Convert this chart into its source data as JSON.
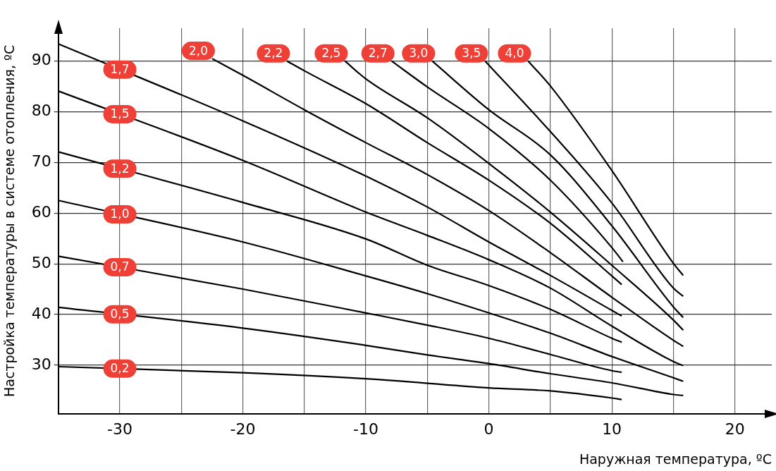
{
  "chart_data": {
    "type": "line",
    "xlabel": "Наружная температура, ºC",
    "ylabel": "Настройка температуры в системе отопления, ºC",
    "xlim": [
      -35,
      23
    ],
    "xticks": [
      -30,
      {
        "value": -25,
        "label": null
      },
      -20,
      {
        "value": -15,
        "label": null
      },
      -10,
      {
        "value": -5,
        "label": null
      },
      0,
      {
        "value": 5,
        "label": null
      },
      10,
      {
        "value": 15,
        "label": null
      },
      20
    ],
    "ylim": [
      20.4,
      96.5
    ],
    "yticks": [
      30,
      40,
      50,
      60,
      70,
      80,
      90
    ],
    "grid": true,
    "legend": false,
    "marker": "none",
    "line_style": "solid",
    "series": [
      {
        "name": "0,2",
        "color": "#000000",
        "x": [
          -35,
          -30,
          -20,
          -10,
          0,
          5,
          10,
          10.8
        ],
        "values": [
          29.7,
          null,
          28.5,
          27.3,
          25.5,
          24.9,
          23.5,
          23.2
        ]
      },
      {
        "name": "0,5",
        "color": "#000000",
        "x": [
          -35,
          -30,
          -20,
          -10,
          -5,
          0,
          5,
          10,
          15,
          15.8
        ],
        "values": [
          41.4,
          null,
          37.3,
          33.9,
          32.0,
          30.3,
          28.3,
          26.5,
          24.2,
          24.0
        ]
      },
      {
        "name": "0,7",
        "color": "#000000",
        "x": [
          -35,
          -30,
          -20,
          -10,
          -5,
          0,
          5,
          10,
          10.8
        ],
        "values": [
          51.5,
          null,
          45.0,
          40.3,
          37.9,
          35.3,
          32.1,
          28.9,
          28.6
        ]
      },
      {
        "name": "1,0",
        "color": "#000000",
        "x": [
          -35,
          -30,
          -20,
          -10,
          -5,
          0,
          5,
          10,
          15,
          15.8
        ],
        "values": [
          62.5,
          null,
          54.3,
          47.6,
          44.1,
          40.3,
          36.3,
          31.7,
          27.5,
          26.8
        ]
      },
      {
        "name": "1,2",
        "color": "#000000",
        "x": [
          -35,
          -30,
          -20,
          -10,
          -5,
          0,
          5,
          10,
          10.8
        ],
        "values": [
          72.1,
          null,
          62.1,
          54.9,
          49.7,
          45.7,
          41.0,
          35.3,
          34.5
        ]
      },
      {
        "name": "1,5",
        "color": "#000000",
        "x": [
          -35,
          -30,
          -20,
          -10,
          -5,
          0,
          5,
          10,
          15,
          15.8
        ],
        "values": [
          84.1,
          null,
          70.4,
          60.2,
          55.6,
          50.8,
          45.2,
          37.7,
          30.7,
          29.9
        ]
      },
      {
        "name": "1,7",
        "color": "#000000",
        "x": [
          -35,
          -30,
          -20,
          -10,
          -5,
          0,
          5,
          10,
          10.8
        ],
        "values": [
          93.4,
          null,
          78.2,
          67.3,
          61.2,
          54.3,
          47.7,
          40.8,
          39.7
        ]
      },
      {
        "name": "2,0",
        "color": "#000000",
        "x": [
          -22.5,
          -20,
          -15,
          -10,
          -5,
          0,
          5,
          10,
          15,
          15.8
        ],
        "values": [
          90.5,
          87.2,
          80.4,
          73.9,
          67.6,
          60.5,
          52.2,
          43.4,
          34.9,
          33.7
        ]
      },
      {
        "name": "2,2",
        "color": "#000000",
        "x": [
          -16.4,
          -15,
          -10,
          -5,
          0,
          5,
          10,
          10.8
        ],
        "values": [
          90,
          88.1,
          81.6,
          73.9,
          66.5,
          58.0,
          47.6,
          45.9
        ]
      },
      {
        "name": "2,5",
        "color": "#000000",
        "x": [
          -11.7,
          -10,
          -5,
          0,
          5,
          10,
          15,
          15.8
        ],
        "values": [
          90,
          86.5,
          78.8,
          69.8,
          60.2,
          49.7,
          38.9,
          36.9
        ]
      },
      {
        "name": "2,7",
        "color": "#000000",
        "x": [
          -7.9,
          -5,
          0,
          5,
          10,
          10.9
        ],
        "values": [
          90,
          84.9,
          76.7,
          66.5,
          53.2,
          50.4
        ]
      },
      {
        "name": "3,0",
        "color": "#000000",
        "x": [
          -4.6,
          0,
          5,
          10,
          15,
          15.8
        ],
        "values": [
          90,
          80.4,
          71.5,
          57.5,
          41.5,
          39.4
        ]
      },
      {
        "name": "3,5",
        "color": "#000000",
        "x": [
          -0.3,
          5,
          10,
          15,
          15.8
        ],
        "values": [
          90,
          76.1,
          62.0,
          45.2,
          43.6
        ]
      },
      {
        "name": "4,0",
        "color": "#000000",
        "x": [
          3.2,
          5,
          10,
          15,
          15.8
        ],
        "values": [
          90,
          85.1,
          68.4,
          50.1,
          47.7
        ]
      }
    ]
  }
}
